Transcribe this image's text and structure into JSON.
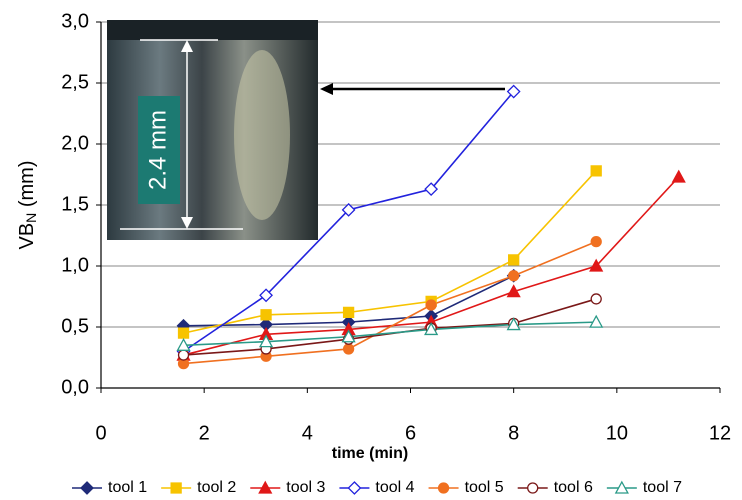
{
  "chart_data": {
    "type": "line",
    "ylabel": {
      "text": "VB",
      "sub": "N",
      "rest": " (mm)"
    },
    "xlabel": "time (min)",
    "annotation": "2.4 mm",
    "x": [
      1.6,
      3.2,
      4.8,
      6.4,
      8,
      9.6,
      11.2
    ],
    "xlim": [
      0,
      12
    ],
    "xticks": [
      0,
      2,
      4,
      6,
      8,
      10,
      12
    ],
    "ylim": [
      0,
      3
    ],
    "yticks": [
      {
        "value": 0,
        "label": "0,0"
      },
      {
        "value": 0.5,
        "label": "0,5"
      },
      {
        "value": 1,
        "label": "1,0"
      },
      {
        "value": 1.5,
        "label": "1,5"
      },
      {
        "value": 2,
        "label": "2,0"
      },
      {
        "value": 2.5,
        "label": "2,5"
      },
      {
        "value": 3,
        "label": "3,0"
      }
    ],
    "grid": true,
    "legend": "bottom",
    "series": [
      {
        "name": "tool 1",
        "color": "#1f2a78",
        "marker": "diamond",
        "filled": true,
        "values": [
          0.51,
          0.52,
          0.54,
          0.59,
          0.92,
          null,
          null
        ]
      },
      {
        "name": "tool 2",
        "color": "#f7c300",
        "marker": "square",
        "filled": true,
        "values": [
          0.45,
          0.6,
          0.62,
          0.71,
          1.05,
          1.78,
          null
        ]
      },
      {
        "name": "tool 3",
        "color": "#e01818",
        "marker": "triangle",
        "filled": true,
        "values": [
          0.27,
          0.44,
          0.48,
          0.54,
          0.79,
          1.0,
          1.73
        ]
      },
      {
        "name": "tool 4",
        "color": "#2222dd",
        "marker": "diamond",
        "filled": false,
        "values": [
          0.3,
          0.76,
          1.46,
          1.63,
          2.43,
          null,
          null
        ]
      },
      {
        "name": "tool 5",
        "color": "#f07020",
        "marker": "circle",
        "filled": true,
        "values": [
          0.2,
          0.26,
          0.32,
          0.68,
          0.92,
          1.2,
          null
        ]
      },
      {
        "name": "tool 6",
        "color": "#7a1818",
        "marker": "circle",
        "filled": false,
        "values": [
          0.27,
          0.32,
          0.4,
          0.49,
          0.53,
          0.73,
          null
        ]
      },
      {
        "name": "tool 7",
        "color": "#2a9a88",
        "marker": "triangle",
        "filled": false,
        "values": [
          0.35,
          0.38,
          0.42,
          0.48,
          0.52,
          0.54,
          null
        ]
      }
    ]
  }
}
